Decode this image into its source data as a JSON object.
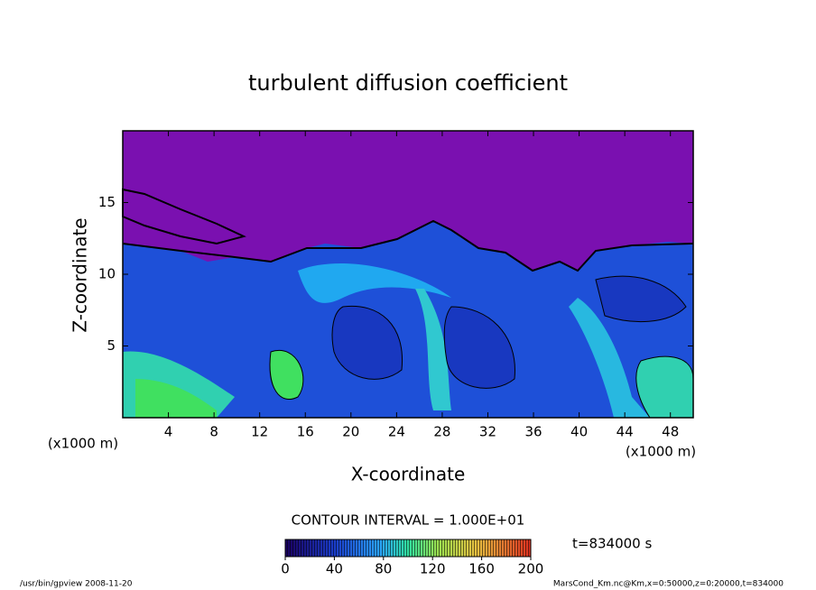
{
  "chart_data": {
    "type": "contour",
    "title": "turbulent diffusion coefficient",
    "x_label": "X-coordinate",
    "y_label": "Z-coordinate",
    "x_unit": "(x1000 m)",
    "y_unit": "(x1000 m)",
    "xlim": [
      0,
      50
    ],
    "xticks": [
      4,
      8,
      12,
      16,
      20,
      24,
      28,
      32,
      36,
      40,
      44,
      48
    ],
    "ylim": [
      0,
      20
    ],
    "yticks": [
      5,
      10,
      15
    ],
    "contour_interval": "CONTOUR INTERVAL = 1.000E+01",
    "time": "t=834000 s",
    "colorbar": {
      "lim": [
        0,
        200
      ],
      "ticks": [
        0,
        40,
        80,
        120,
        160,
        200
      ]
    },
    "footer_left": "/usr/bin/gpview  2008-11-20",
    "footer_right": "MarsCond_Km.nc@Km,x=0:50000,z=0:20000,t=834000"
  }
}
